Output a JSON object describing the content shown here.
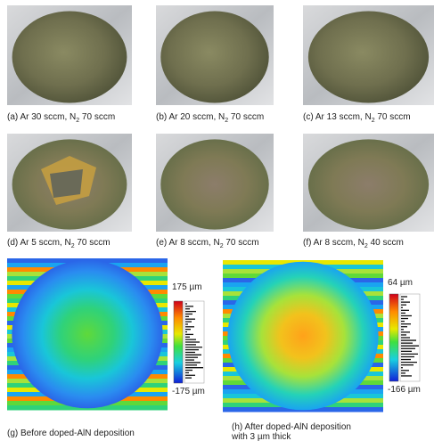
{
  "panels": [
    {
      "label": "(a) Ar 30 sccm, N",
      "sub": "2",
      "rest": " 70 sccm"
    },
    {
      "label": "(b) Ar 20 sccm, N",
      "sub": "2",
      "rest": " 70 sccm"
    },
    {
      "label": "(c) Ar 13 sccm, N",
      "sub": "2",
      "rest": " 70 sccm"
    },
    {
      "label": "(d) Ar 5 sccm, N",
      "sub": "2",
      "rest": " 70 sccm"
    },
    {
      "label": "(e) Ar 8 sccm, N",
      "sub": "2",
      "rest": " 70 sccm"
    },
    {
      "label": "(f) Ar 8 sccm, N",
      "sub": "2",
      "rest": " 40 sccm"
    }
  ],
  "maps": [
    {
      "caption": [
        "(g) Before doped-AlN deposition"
      ],
      "max_label": "175 µm",
      "min_label": "-175 µm"
    },
    {
      "caption": [
        "(h) After doped-AlN deposition",
        "with 3 µm thick"
      ],
      "max_label": "64 µm",
      "min_label": "-166 µm"
    }
  ]
}
